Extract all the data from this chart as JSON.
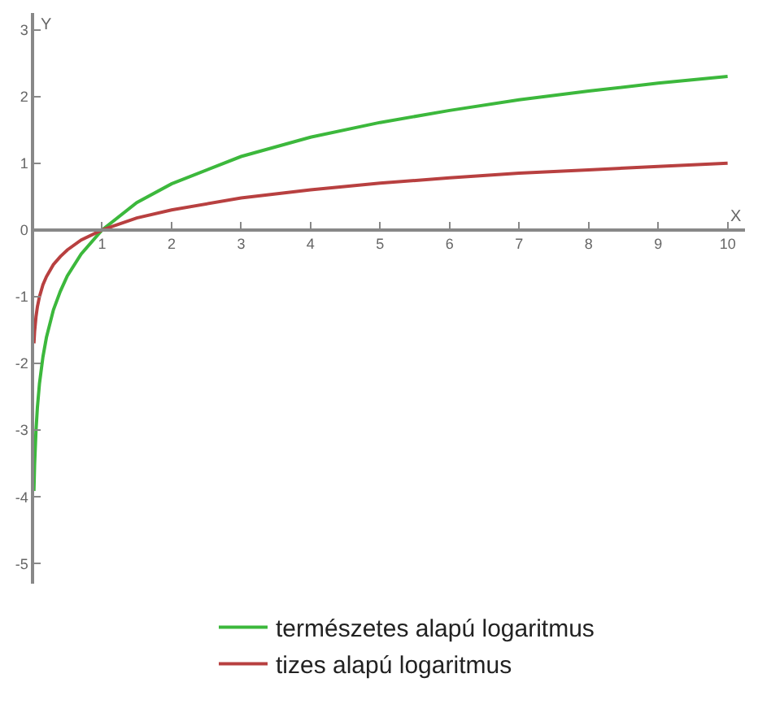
{
  "chart_data": {
    "type": "line",
    "xlabel": "X",
    "ylabel": "Y",
    "x": [
      0.02,
      0.03,
      0.05,
      0.07,
      0.1,
      0.15,
      0.2,
      0.3,
      0.4,
      0.5,
      0.7,
      1,
      1.5,
      2,
      3,
      4,
      5,
      6,
      7,
      8,
      9,
      10
    ],
    "series": [
      {
        "name": "természetes alapú logaritmus",
        "color": "#3cb83c",
        "values": [
          -3.91,
          -3.51,
          -3.0,
          -2.66,
          -2.3,
          -1.9,
          -1.61,
          -1.2,
          -0.92,
          -0.69,
          -0.36,
          0,
          0.41,
          0.69,
          1.1,
          1.39,
          1.61,
          1.79,
          1.95,
          2.08,
          2.2,
          2.3
        ]
      },
      {
        "name": "tizes alapú logaritmus",
        "color": "#b84040",
        "values": [
          -1.7,
          -1.52,
          -1.3,
          -1.15,
          -1.0,
          -0.82,
          -0.7,
          -0.52,
          -0.4,
          -0.3,
          -0.15,
          0,
          0.18,
          0.3,
          0.48,
          0.6,
          0.7,
          0.78,
          0.85,
          0.9,
          0.95,
          1.0
        ]
      }
    ],
    "xlim": [
      0,
      10.25
    ],
    "ylim": [
      -5.3,
      3.25
    ],
    "xticks": [
      1,
      2,
      3,
      4,
      5,
      6,
      7,
      8,
      9,
      10
    ],
    "yticks": [
      -5,
      -4,
      -3,
      -2,
      -1,
      0,
      1,
      2,
      3
    ],
    "grid": false,
    "legend": "bottom",
    "marker": "none",
    "line_style": "solid"
  }
}
